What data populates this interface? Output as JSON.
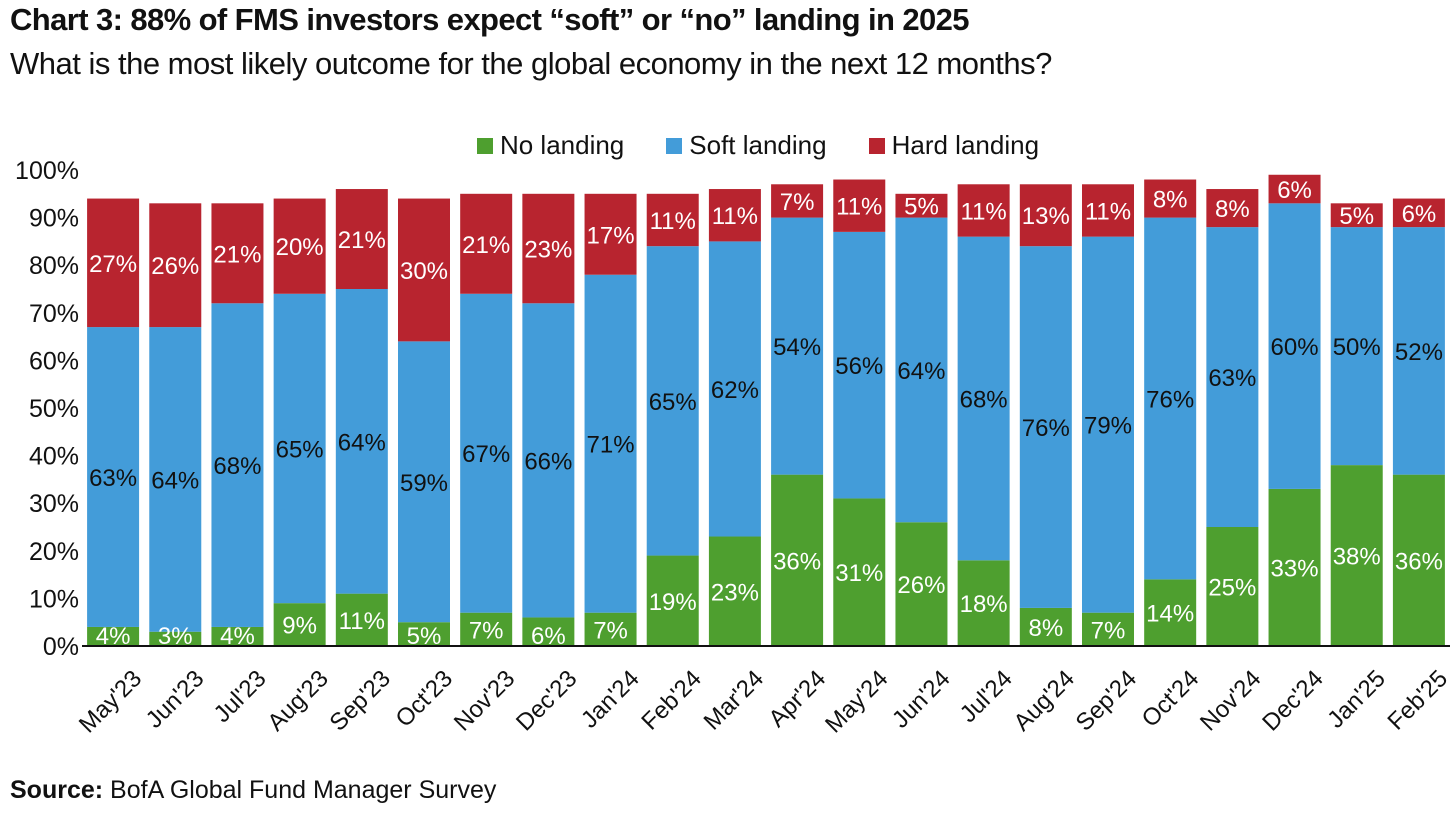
{
  "title": "Chart 3: 88% of FMS investors expect “soft” or “no” landing in 2025",
  "subtitle": "What is the most likely outcome for the global economy in the next 12 months?",
  "source": {
    "label": "Source:",
    "text": "BofA Global Fund Manager Survey"
  },
  "colors": {
    "no_landing": "#4e9f2f",
    "soft_landing": "#439cd9",
    "hard_landing": "#b8242f"
  },
  "chart_data": {
    "type": "bar",
    "stacked": true,
    "categories": [
      "May'23",
      "Jun'23",
      "Jul'23",
      "Aug'23",
      "Sep'23",
      "Oct'23",
      "Nov'23",
      "Dec'23",
      "Jan'24",
      "Feb'24",
      "Mar'24",
      "Apr'24",
      "May'24",
      "Jun'24",
      "Jul'24",
      "Aug'24",
      "Sep'24",
      "Oct'24",
      "Nov'24",
      "Dec'24",
      "Jan'25",
      "Feb'25"
    ],
    "series": [
      {
        "name": "No landing",
        "values": [
          4,
          3,
          4,
          9,
          11,
          5,
          7,
          6,
          7,
          19,
          23,
          36,
          31,
          26,
          18,
          8,
          7,
          14,
          25,
          33,
          38,
          36
        ]
      },
      {
        "name": "Soft landing",
        "values": [
          63,
          64,
          68,
          65,
          64,
          59,
          67,
          66,
          71,
          65,
          62,
          54,
          56,
          64,
          68,
          76,
          79,
          76,
          63,
          60,
          50,
          52
        ]
      },
      {
        "name": "Hard landing",
        "values": [
          27,
          26,
          21,
          20,
          21,
          30,
          21,
          23,
          17,
          11,
          11,
          7,
          11,
          5,
          11,
          13,
          11,
          8,
          8,
          6,
          5,
          6
        ]
      }
    ],
    "y_ticks": [
      "0%",
      "10%",
      "20%",
      "30%",
      "40%",
      "50%",
      "60%",
      "70%",
      "80%",
      "90%",
      "100%"
    ],
    "ylim": [
      0,
      100
    ],
    "value_suffix": "%",
    "legend_position": "top-center",
    "grid": false
  }
}
